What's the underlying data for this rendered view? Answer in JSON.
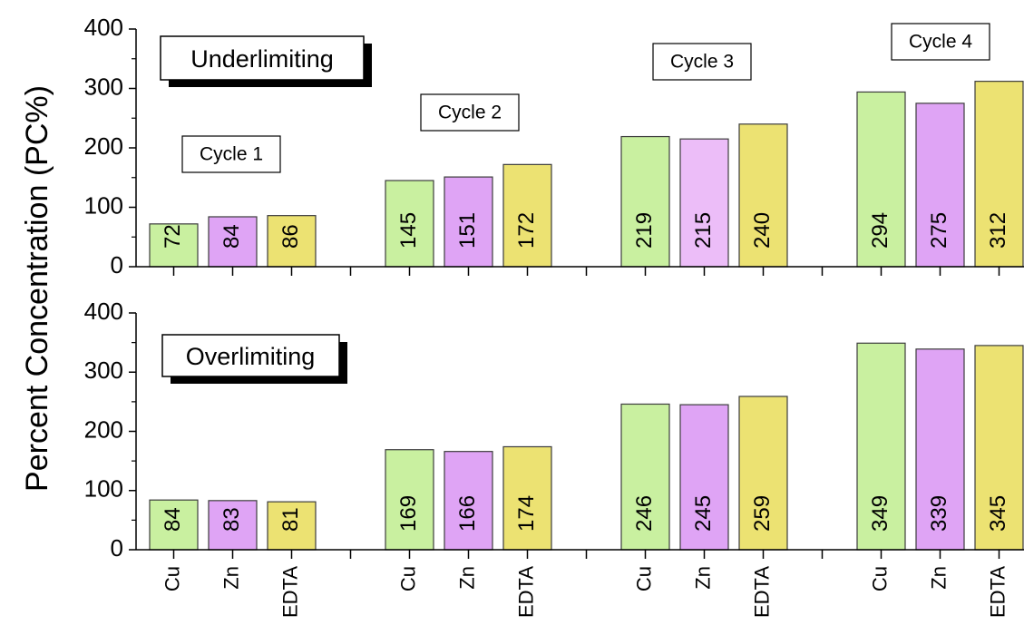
{
  "chart_data": [
    {
      "type": "bar",
      "title": "Underlimiting",
      "ylabel": "Percent Concentration (PC%)",
      "ylim": [
        0,
        400
      ],
      "yticks": [
        0,
        100,
        200,
        300,
        400
      ],
      "groups": [
        {
          "name": "Cycle 1",
          "bars": [
            {
              "category": "Cu",
              "value": 72,
              "color": "#c9f0a0"
            },
            {
              "category": "Zn",
              "value": 84,
              "color": "#dfa4f5"
            },
            {
              "category": "EDTA",
              "value": 86,
              "color": "#ece272"
            }
          ]
        },
        {
          "name": "Cycle 2",
          "bars": [
            {
              "category": "Cu",
              "value": 145,
              "color": "#c9f0a0"
            },
            {
              "category": "Zn",
              "value": 151,
              "color": "#dfa4f5"
            },
            {
              "category": "EDTA",
              "value": 172,
              "color": "#ece272"
            }
          ]
        },
        {
          "name": "Cycle 3",
          "bars": [
            {
              "category": "Cu",
              "value": 219,
              "color": "#c9f0a0"
            },
            {
              "category": "Zn",
              "value": 215,
              "color": "#ecbdf8"
            },
            {
              "category": "EDTA",
              "value": 240,
              "color": "#ece272"
            }
          ]
        },
        {
          "name": "Cycle 4",
          "bars": [
            {
              "category": "Cu",
              "value": 294,
              "color": "#c9f0a0"
            },
            {
              "category": "Zn",
              "value": 275,
              "color": "#dfa4f5"
            },
            {
              "category": "EDTA",
              "value": 312,
              "color": "#ece272"
            }
          ]
        }
      ]
    },
    {
      "type": "bar",
      "title": "Overlimiting",
      "ylabel": "Percent Concentration (PC%)",
      "ylim": [
        0,
        400
      ],
      "yticks": [
        0,
        100,
        200,
        300,
        400
      ],
      "groups": [
        {
          "name": "Cycle 1",
          "bars": [
            {
              "category": "Cu",
              "value": 84,
              "color": "#c9f0a0"
            },
            {
              "category": "Zn",
              "value": 83,
              "color": "#dfa4f5"
            },
            {
              "category": "EDTA",
              "value": 81,
              "color": "#ece272"
            }
          ]
        },
        {
          "name": "Cycle 2",
          "bars": [
            {
              "category": "Cu",
              "value": 169,
              "color": "#c9f0a0"
            },
            {
              "category": "Zn",
              "value": 166,
              "color": "#dfa4f5"
            },
            {
              "category": "EDTA",
              "value": 174,
              "color": "#ece272"
            }
          ]
        },
        {
          "name": "Cycle 3",
          "bars": [
            {
              "category": "Cu",
              "value": 246,
              "color": "#c9f0a0"
            },
            {
              "category": "Zn",
              "value": 245,
              "color": "#dfa4f5"
            },
            {
              "category": "EDTA",
              "value": 259,
              "color": "#ece272"
            }
          ]
        },
        {
          "name": "Cycle 4",
          "bars": [
            {
              "category": "Cu",
              "value": 349,
              "color": "#c9f0a0"
            },
            {
              "category": "Zn",
              "value": 339,
              "color": "#dfa4f5"
            },
            {
              "category": "EDTA",
              "value": 345,
              "color": "#ece272"
            }
          ]
        }
      ]
    }
  ]
}
